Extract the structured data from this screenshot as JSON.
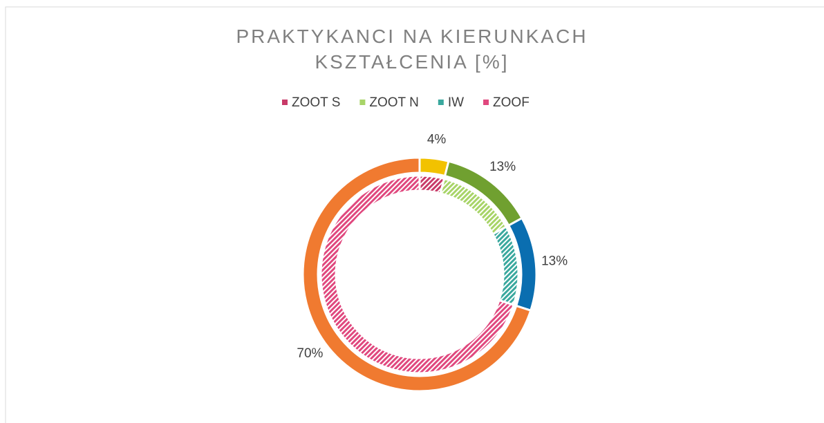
{
  "chart_data": {
    "type": "doughnut",
    "title": "PRAKTYKANCI NA KIERUNKACH KSZTAŁCENIA [%]",
    "categories": [
      "ZOOT S",
      "ZOOT N",
      "IW",
      "ZOOF"
    ],
    "legend": "top",
    "series": [
      {
        "values": [
          4,
          13,
          13,
          70
        ],
        "value_labels": [
          "4%",
          "13%",
          "13%",
          "70%"
        ],
        "colors": [
          "#f2c200",
          "#70a030",
          "#0a6eb0",
          "#f07a30"
        ]
      },
      {
        "values": [
          4,
          13,
          13,
          70
        ],
        "colors": [
          "#c83a68",
          "#a8d468",
          "#3aa89e",
          "#e0487e"
        ],
        "hatched": true
      }
    ]
  }
}
